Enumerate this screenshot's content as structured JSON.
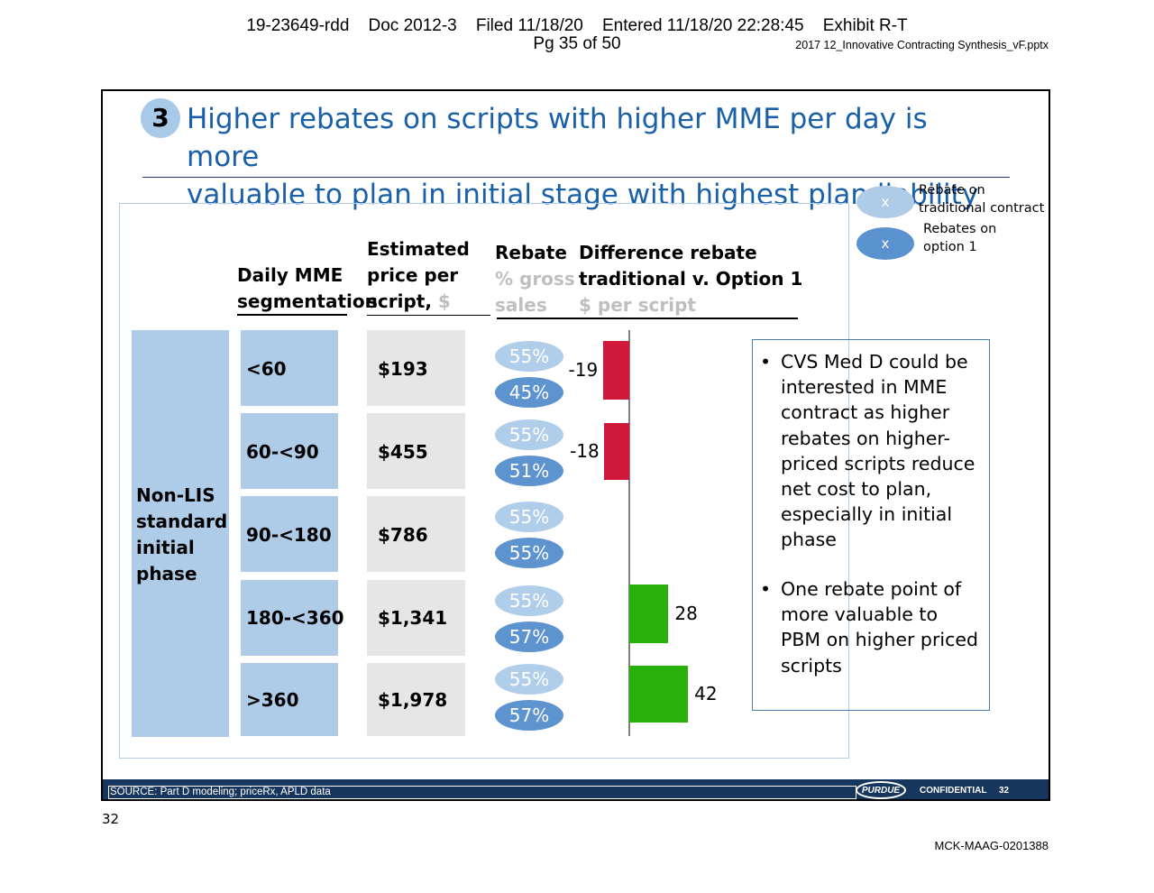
{
  "court_header": {
    "line1": "19-23649-rdd    Doc 2012-3    Filed 11/18/20    Entered 11/18/20 22:28:45    Exhibit R-T",
    "line2": "Pg 35 of 50"
  },
  "file_name": "2017 12_Innovative Contracting Synthesis_vF.pptx",
  "slide": {
    "step_number": "3",
    "title_line1": "Higher rebates on scripts with higher MME per day is more",
    "title_line2": "valuable to plan in initial stage with highest plan liability",
    "legend": [
      {
        "symbol": "x",
        "label_line1": "Rebate on",
        "label_line2": "traditional contract",
        "color": "#aecbe8"
      },
      {
        "symbol": "x",
        "label_line1": "Rebates on",
        "label_line2": "option 1",
        "color": "#5a92cf"
      }
    ],
    "col_headers": {
      "mme": [
        "Daily MME",
        "segmentation"
      ],
      "price": [
        "Estimated",
        "price per",
        "script, "
      ],
      "price_unit": "$",
      "rebate": [
        "Rebate"
      ],
      "rebate_unit": [
        "% gross",
        "sales"
      ],
      "diff": [
        "Difference rebate",
        "traditional v. Option 1"
      ],
      "diff_unit": "$ per script"
    },
    "row_group_label": [
      "Non-LIS",
      "standard",
      "initial",
      "phase"
    ],
    "rows": [
      {
        "segment": "<60",
        "price": "$193",
        "rebate_traditional": "55%",
        "rebate_option1": "45%",
        "difference": "-19"
      },
      {
        "segment": "60-<90",
        "price": "$455",
        "rebate_traditional": "55%",
        "rebate_option1": "51%",
        "difference": "-18"
      },
      {
        "segment": "90-<180",
        "price": "$786",
        "rebate_traditional": "55%",
        "rebate_option1": "55%",
        "difference": ""
      },
      {
        "segment": "180-<360",
        "price": "$1,341",
        "rebate_traditional": "55%",
        "rebate_option1": "57%",
        "difference": "28"
      },
      {
        "segment": ">360",
        "price": "$1,978",
        "rebate_traditional": "55%",
        "rebate_option1": "57%",
        "difference": "42"
      }
    ],
    "bar_values": [
      -19,
      -18,
      0,
      28,
      42
    ],
    "colors": {
      "negative": "#d0193a",
      "positive": "#27b10a",
      "title": "#1a60a8",
      "footer": "#17365d"
    },
    "notes": [
      "CVS Med D could be interested in MME contract as higher rebates on higher-priced scripts reduce net cost to plan, especially in initial phase",
      "One rebate point of more valuable to PBM on higher priced scripts"
    ],
    "footer": {
      "source": "SOURCE: Part D modeling; priceRx, APLD data",
      "logo_text": "PURDUE",
      "confidential": "CONFIDENTIAL",
      "page_number": "32"
    }
  },
  "page_label": "32",
  "bates_number": "MCK-MAAG-0201388"
}
